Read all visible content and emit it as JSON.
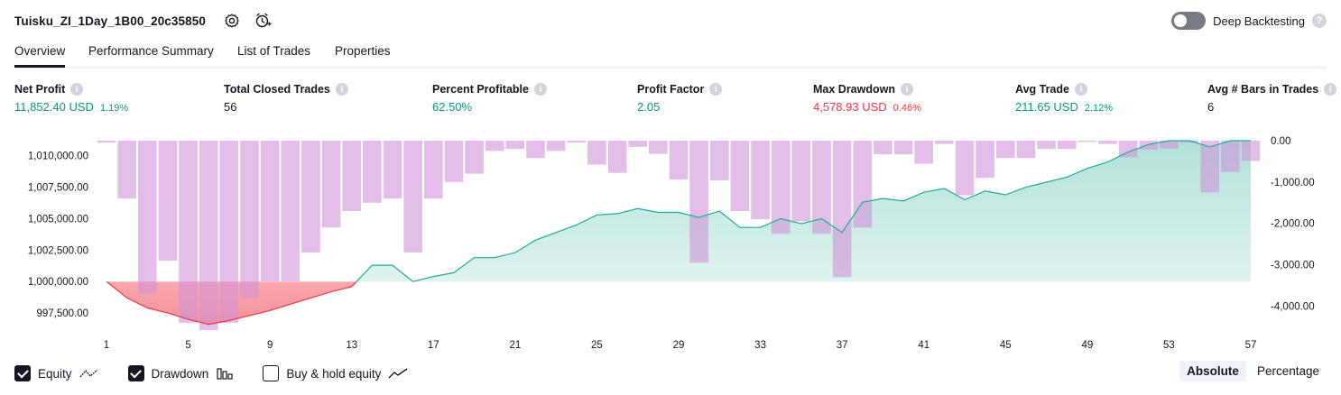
{
  "header": {
    "title": "Tuisku_ZI_1Day_1B00_20c35850",
    "deep_backtesting_label": "Deep Backtesting"
  },
  "tabs": [
    {
      "label": "Overview",
      "active": true
    },
    {
      "label": "Performance Summary",
      "active": false
    },
    {
      "label": "List of Trades",
      "active": false
    },
    {
      "label": "Properties",
      "active": false
    }
  ],
  "metrics": [
    {
      "label": "Net Profit",
      "value": "11,852.40 USD",
      "pct": "1.19%",
      "color": "#089981"
    },
    {
      "label": "Total Closed Trades",
      "value": "56",
      "pct": "",
      "color": "#131722"
    },
    {
      "label": "Percent Profitable",
      "value": "62.50%",
      "pct": "",
      "color": "#089981"
    },
    {
      "label": "Profit Factor",
      "value": "2.05",
      "pct": "",
      "color": "#089981"
    },
    {
      "label": "Max Drawdown",
      "value": "4,578.93 USD",
      "pct": "0.46%",
      "color": "#f23645"
    },
    {
      "label": "Avg Trade",
      "value": "211.65 USD",
      "pct": "2.12%",
      "color": "#089981"
    },
    {
      "label": "Avg # Bars in Trades",
      "value": "6",
      "pct": "",
      "color": "#131722"
    }
  ],
  "chart_data": {
    "type": "area",
    "x": [
      1,
      2,
      3,
      4,
      5,
      6,
      7,
      8,
      9,
      10,
      11,
      12,
      13,
      14,
      15,
      16,
      17,
      18,
      19,
      20,
      21,
      22,
      23,
      24,
      25,
      26,
      27,
      28,
      29,
      30,
      31,
      32,
      33,
      34,
      35,
      36,
      37,
      38,
      39,
      40,
      41,
      42,
      43,
      44,
      45,
      46,
      47,
      48,
      49,
      50,
      51,
      52,
      53,
      54,
      55,
      56,
      57
    ],
    "x_ticks": [
      "1",
      "5",
      "9",
      "13",
      "17",
      "21",
      "25",
      "29",
      "33",
      "37",
      "41",
      "45",
      "49",
      "53",
      "57"
    ],
    "left_axis": {
      "ticks": [
        "1,010,000.00",
        "1,007,500.00",
        "1,005,000.00",
        "1,002,500.00",
        "1,000,000.00",
        "997,500.00"
      ],
      "range": [
        996000,
        1011700
      ]
    },
    "right_axis": {
      "ticks": [
        "0.00",
        "-1,000.00",
        "-2,000.00",
        "-3,000.00",
        "-4,000.00"
      ],
      "range": [
        -4620,
        150
      ]
    },
    "baseline": 1000000,
    "series": [
      {
        "name": "Equity",
        "color": "#22ab94",
        "values": [
          1000000,
          998700,
          997900,
          997500,
          997000,
          996600,
          996900,
          997300,
          997700,
          998200,
          998700,
          999200,
          999600,
          1001300,
          1001300,
          1000000,
          1000400,
          1000700,
          1001900,
          1001900,
          1002300,
          1003300,
          1003900,
          1004500,
          1005300,
          1005400,
          1005800,
          1005500,
          1005500,
          1005100,
          1005600,
          1004300,
          1004300,
          1005000,
          1004600,
          1005000,
          1003900,
          1006300,
          1006600,
          1006400,
          1007100,
          1007400,
          1006500,
          1007200,
          1006900,
          1007500,
          1007900,
          1008300,
          1009000,
          1009500,
          1010300,
          1010900,
          1011200,
          1011200,
          1010700,
          1011200,
          1011200
        ]
      },
      {
        "name": "Drawdown",
        "color": "#ce93d8",
        "values": [
          -50,
          -1400,
          -3700,
          -2900,
          -4400,
          -4580,
          -4400,
          -3800,
          -3400,
          -3400,
          -2700,
          -2100,
          -1700,
          -1500,
          -1400,
          -2700,
          -1400,
          -1000,
          -800,
          -250,
          -200,
          -420,
          -250,
          -50,
          -580,
          -780,
          -150,
          -320,
          -940,
          -2950,
          -960,
          -1700,
          -1900,
          -2250,
          -1950,
          -2250,
          -3300,
          -2100,
          -330,
          -330,
          -560,
          -80,
          -1320,
          -900,
          -420,
          -420,
          -200,
          -200,
          -30,
          -80,
          -400,
          -220,
          -190,
          -50,
          -1250,
          -760,
          -490
        ]
      }
    ]
  },
  "legend": [
    {
      "label": "Equity",
      "checked": true,
      "icon": "equity-line-icon"
    },
    {
      "label": "Drawdown",
      "checked": true,
      "icon": "drawdown-bars-icon"
    },
    {
      "label": "Buy & hold equity",
      "checked": false,
      "icon": "buy-hold-line-icon"
    }
  ],
  "mode": {
    "absolute_label": "Absolute",
    "percentage_label": "Percentage",
    "active": "Absolute"
  }
}
